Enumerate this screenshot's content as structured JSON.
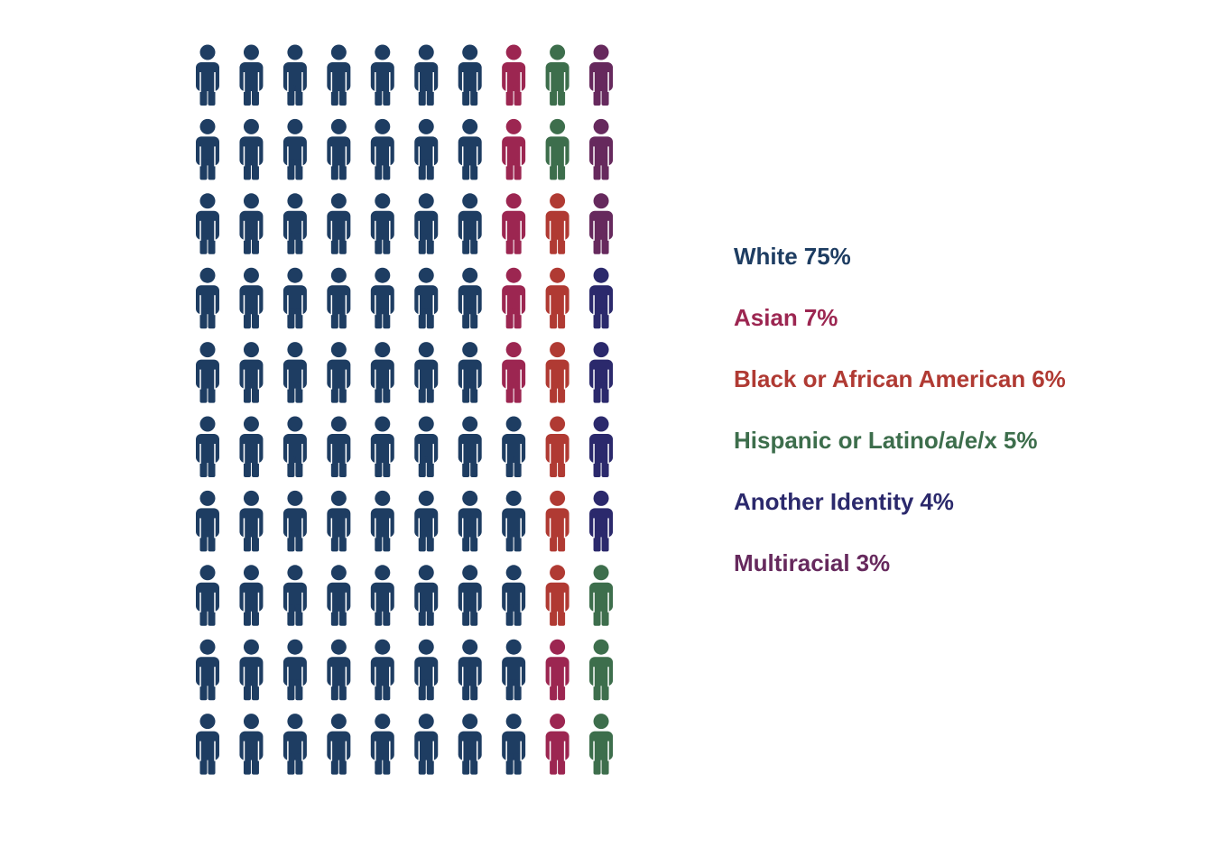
{
  "chart_data": {
    "type": "pictogram",
    "series": [
      {
        "name": "White",
        "color": "#1e3d62",
        "values": [
          75
        ],
        "value_labels": [
          "75%"
        ]
      },
      {
        "name": "Asian",
        "color": "#9c2651",
        "values": [
          7
        ],
        "value_labels": [
          "7%"
        ]
      },
      {
        "name": "Black or African American",
        "color": "#b03a33",
        "values": [
          6
        ],
        "value_labels": [
          "6%"
        ]
      },
      {
        "name": "Hispanic or Latino/a/e/x",
        "color": "#3d6e4c",
        "values": [
          5
        ],
        "value_labels": [
          "5%"
        ]
      },
      {
        "name": "Another Identity",
        "color": "#2b296c",
        "values": [
          4
        ],
        "value_labels": [
          "4%"
        ]
      },
      {
        "name": "Multiracial",
        "color": "#66295d",
        "values": [
          3
        ],
        "value_labels": [
          "3%"
        ]
      }
    ]
  }
}
